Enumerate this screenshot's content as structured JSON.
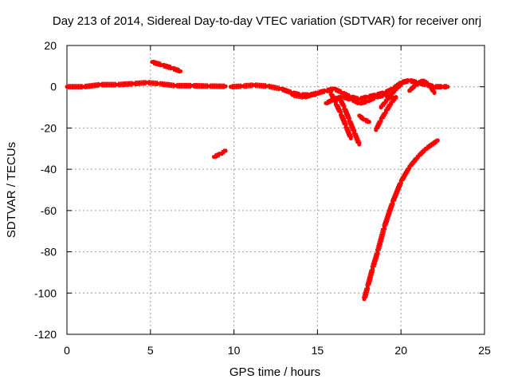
{
  "chart_data": {
    "type": "scatter",
    "title": "Day 213 of 2014, Sidereal Day-to-day VTEC variation (SDTVAR) for receiver onrj",
    "xlabel": "GPS time / hours",
    "ylabel": "SDTVAR / TECUs",
    "xlim": [
      0,
      25
    ],
    "ylim": [
      -120,
      20
    ],
    "x_ticks": [
      "0",
      "5",
      "10",
      "15",
      "20",
      "25"
    ],
    "y_ticks": [
      "20",
      "0",
      "-20",
      "-40",
      "-60",
      "-80",
      "-100",
      "-120"
    ],
    "grid": true,
    "marker_color": "#ff0000",
    "series": [
      {
        "x": [
          0.0,
          1.0,
          2.0,
          3.0,
          4.0,
          4.8,
          5.5,
          6.5,
          7.5,
          8.5,
          9.5
        ],
        "y": [
          0,
          0,
          1,
          1,
          1.5,
          2,
          1.5,
          0.5,
          0.5,
          0.3,
          0.2
        ]
      },
      {
        "x": [
          9.8,
          10.5,
          11.2,
          12.0,
          12.8,
          13.5,
          14.0,
          14.5,
          15.0
        ],
        "y": [
          0,
          0.3,
          0.8,
          0.3,
          -1,
          -3,
          -4,
          -4,
          -3.5
        ]
      },
      {
        "x": [
          5.1,
          5.7,
          6.3,
          6.8
        ],
        "y": [
          12,
          10.5,
          9,
          7.5
        ]
      },
      {
        "x": [
          8.8,
          9.2,
          9.5
        ],
        "y": [
          -34,
          -32.5,
          -31
        ]
      },
      {
        "x": [
          13.5,
          14.2,
          15.0,
          15.5,
          16.0,
          16.5,
          17.0,
          17.5,
          18.0,
          18.5,
          19.0,
          19.5,
          20.0,
          20.5,
          21.0,
          21.5,
          22.0,
          22.5,
          22.8
        ],
        "y": [
          -4,
          -5,
          -3,
          -2,
          -1,
          -3,
          -5,
          -6,
          -5,
          -4,
          -3,
          -1,
          2,
          3,
          2,
          1,
          0,
          0,
          0
        ]
      },
      {
        "x": [
          15.5,
          16.0,
          16.5,
          17.0,
          17.5,
          18.0,
          18.5,
          19.0,
          19.5
        ],
        "y": [
          -8,
          -6,
          -5,
          -6,
          -8,
          -7,
          -5,
          -4,
          -5
        ]
      },
      {
        "x": [
          15.8,
          16.1,
          16.4,
          16.7,
          17.0
        ],
        "y": [
          -3,
          -8,
          -13,
          -19,
          -25
        ]
      },
      {
        "x": [
          16.3,
          16.6,
          16.9,
          17.2,
          17.5
        ],
        "y": [
          -5,
          -10,
          -16,
          -22,
          -28
        ]
      },
      {
        "x": [
          17.5,
          17.8,
          18.1
        ],
        "y": [
          -14,
          -16,
          -17
        ]
      },
      {
        "x": [
          18.5,
          18.8,
          19.1,
          19.4,
          19.7
        ],
        "y": [
          -21,
          -16,
          -12,
          -8,
          -5
        ]
      },
      {
        "x": [
          18.8,
          19.1,
          19.4,
          19.7,
          20.0
        ],
        "y": [
          -10,
          -7,
          -4,
          -1,
          1
        ]
      },
      {
        "x": [
          20.5,
          20.9,
          21.3,
          21.7,
          22.0
        ],
        "y": [
          -2,
          1,
          3,
          1,
          -3
        ]
      },
      {
        "x": [
          17.8,
          18.0,
          18.3,
          18.6,
          19.0,
          19.5,
          20.0,
          20.5,
          21.0,
          21.5,
          22.2
        ],
        "y": [
          -103,
          -97,
          -88,
          -80,
          -68,
          -56,
          -46,
          -39,
          -34,
          -30,
          -26
        ]
      }
    ]
  }
}
